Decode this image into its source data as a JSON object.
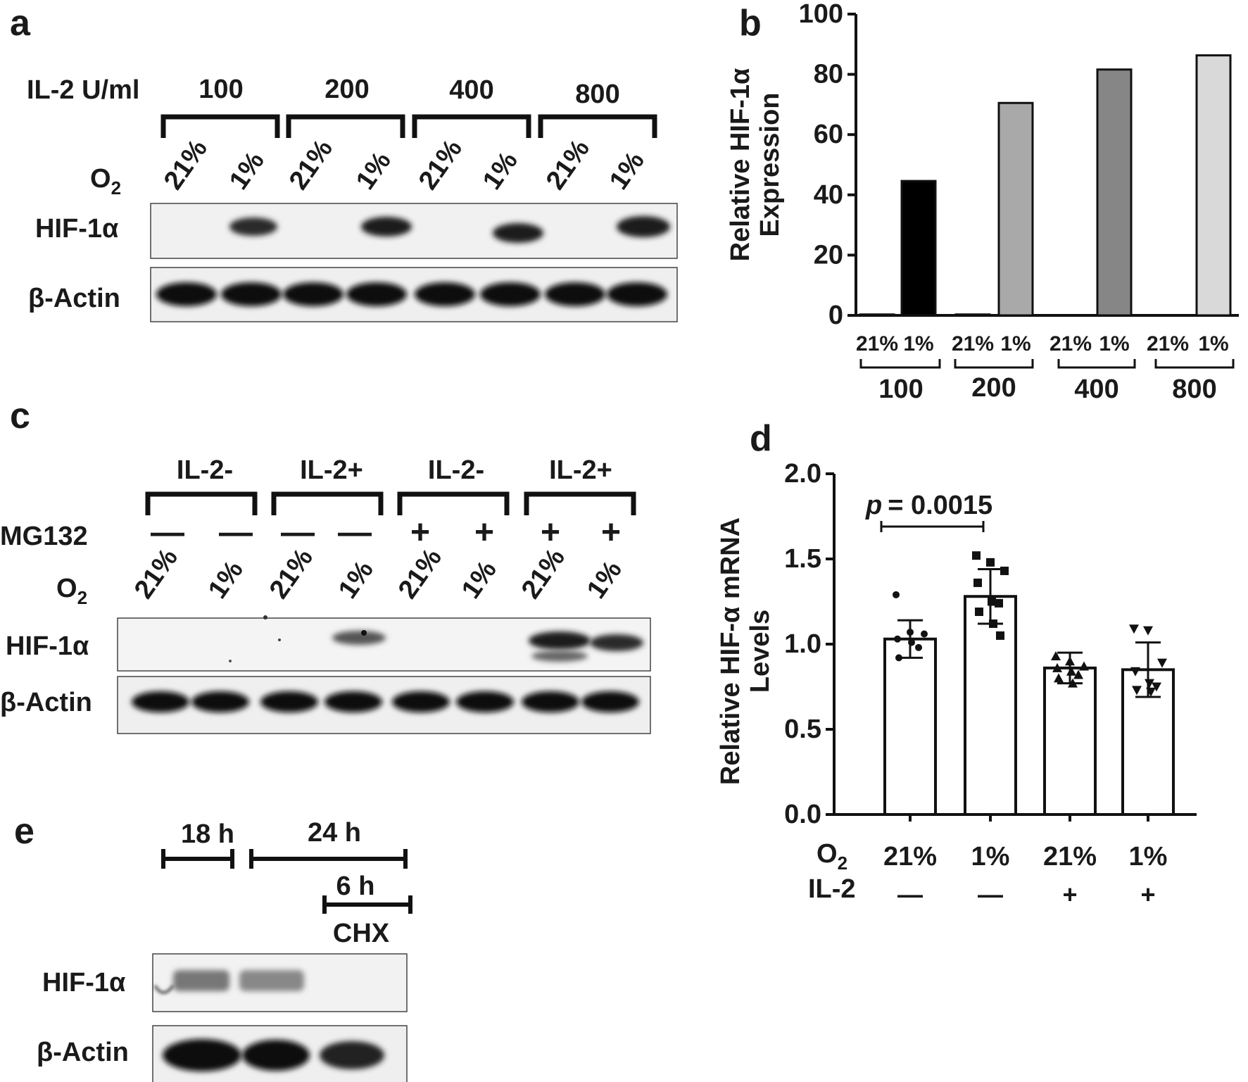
{
  "panels": {
    "a": {
      "letter": "a",
      "il2_label": "IL-2 U/ml",
      "doses": [
        "100",
        "200",
        "400",
        "800"
      ],
      "o2_label": "O",
      "o2_sub": "2",
      "lanes": [
        "21%",
        "1%",
        "21%",
        "1%",
        "21%",
        "1%",
        "21%",
        "1%"
      ],
      "blot_labels": [
        "HIF-1α",
        "β-Actin"
      ]
    },
    "b": {
      "letter": "b",
      "dose_groups": [
        "100",
        "200",
        "400",
        "800"
      ]
    },
    "c": {
      "letter": "c",
      "groups": [
        "IL-2-",
        "IL-2+",
        "IL-2-",
        "IL-2+"
      ],
      "mg132_label": "MG132",
      "mg132": [
        "—",
        "—",
        "—",
        "—",
        "+",
        "+",
        "+",
        "+"
      ],
      "o2_label": "O",
      "o2_sub": "2",
      "lanes": [
        "21%",
        "1%",
        "21%",
        "1%",
        "21%",
        "1%",
        "21%",
        "1%"
      ],
      "blot_labels": [
        "HIF-1α",
        "β-Actin"
      ]
    },
    "d": {
      "letter": "d",
      "o2_label": "O",
      "o2_sub": "2",
      "il2_label": "IL-2",
      "il2": [
        "—",
        "—",
        "+",
        "+"
      ],
      "p_label": "p",
      "p_value": "= 0.0015"
    },
    "e": {
      "letter": "e",
      "time1": "18 h",
      "time2": "24 h",
      "time3": "6 h",
      "chx": "CHX",
      "blot_labels": [
        "HIF-1α",
        "β-Actin"
      ]
    }
  },
  "chart_data": [
    {
      "panel": "b",
      "type": "bar",
      "categories": [
        "21%",
        "1%",
        "21%",
        "1%",
        "21%",
        "1%",
        "21%",
        "1%"
      ],
      "groups": [
        "100",
        "200",
        "400",
        "800"
      ],
      "values": [
        0.3,
        44.6,
        0.3,
        70.5,
        0,
        81.6,
        0,
        86.3
      ],
      "bar_colors": [
        "#000000",
        "#000000",
        "#a9a9a9",
        "#a9a9a9",
        "#868686",
        "#868686",
        "#d9d9d9",
        "#d9d9d9"
      ],
      "ylabel": "Relative HIF-1α Expression",
      "ylim": [
        0,
        100
      ],
      "yticks": [
        "0",
        "20",
        "40",
        "60",
        "80",
        "100"
      ]
    },
    {
      "panel": "d",
      "type": "bar",
      "categories": [
        "21%",
        "1%",
        "21%",
        "1%"
      ],
      "values": [
        1.03,
        1.28,
        0.86,
        0.85
      ],
      "error_sd": [
        0.11,
        0.16,
        0.09,
        0.16
      ],
      "points": [
        [
          1.29,
          1.07,
          1.06,
          1.03,
          1.01,
          0.98,
          0.92
        ],
        [
          1.52,
          1.48,
          1.43,
          1.36,
          1.25,
          1.24,
          1.19,
          1.12,
          1.05
        ],
        [
          0.93,
          0.9,
          0.87,
          0.86,
          0.84,
          0.82,
          0.8,
          0.77
        ],
        [
          1.09,
          1.08,
          0.89,
          0.84,
          0.77,
          0.75,
          0.73,
          0.72
        ]
      ],
      "ylabel": "Relative HIF-α mRNA Levels",
      "ylim": [
        0,
        2.0
      ],
      "yticks": [
        "0.0",
        "0.5",
        "1.0",
        "1.5",
        "2.0"
      ]
    }
  ]
}
